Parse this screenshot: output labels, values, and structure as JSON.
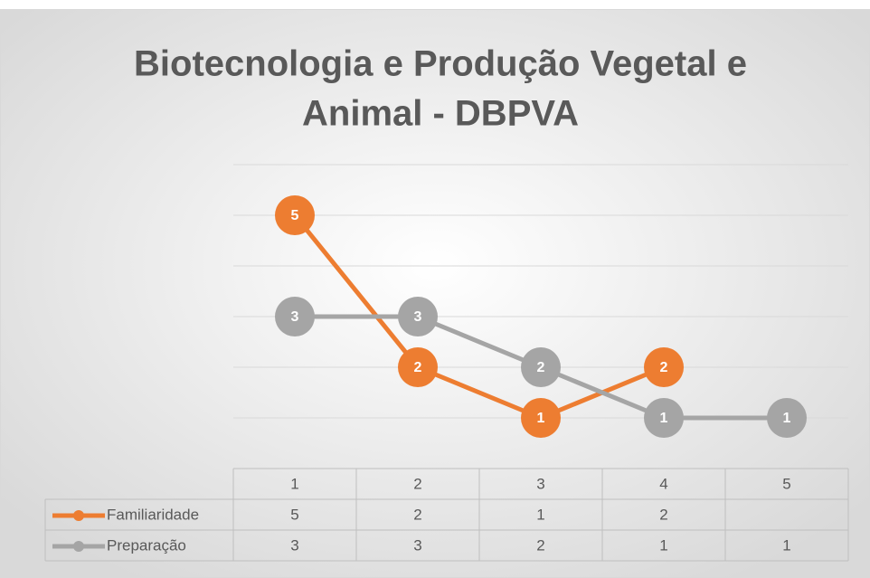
{
  "chart_data": {
    "type": "line",
    "title": [
      "Biotecnologia e Produção Vegetal e",
      "Animal - DBPVA"
    ],
    "categories": [
      "1",
      "2",
      "3",
      "4",
      "5"
    ],
    "series": [
      {
        "name": "Familiaridade",
        "color": "#ed7d31",
        "values": [
          5,
          2,
          1,
          2,
          null
        ]
      },
      {
        "name": "Preparação",
        "color": "#a5a5a5",
        "values": [
          3,
          3,
          2,
          1,
          1
        ]
      }
    ],
    "ylim": [
      0,
      6
    ],
    "yticks": [
      0,
      1,
      2,
      3,
      4,
      5,
      6
    ],
    "grid": true,
    "data_table": true
  }
}
